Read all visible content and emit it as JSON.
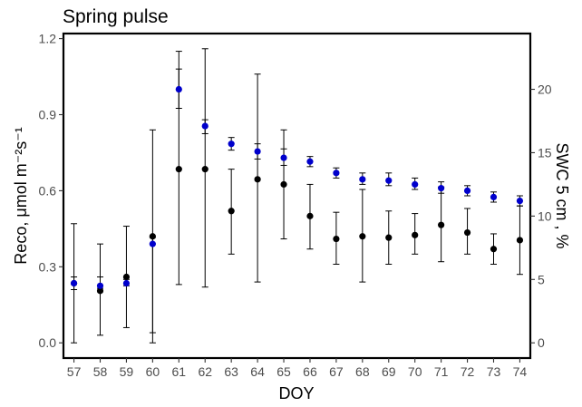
{
  "chart_data": {
    "type": "scatter",
    "title": "Spring pulse",
    "xlabel": "DOY",
    "ylabel_left": "Reco, μmol m⁻²s⁻¹",
    "ylabel_right": "SWC 5 cm , %",
    "x": [
      57,
      58,
      59,
      60,
      61,
      62,
      63,
      64,
      65,
      66,
      67,
      68,
      69,
      70,
      71,
      72,
      73,
      74
    ],
    "xlim": [
      56.6,
      74.4
    ],
    "ylim_left": [
      -0.06,
      1.22
    ],
    "ylim_right": [
      -1.2,
      24.4
    ],
    "yticks_left": [
      "0.0",
      "0.3",
      "0.6",
      "0.9",
      "1.2"
    ],
    "yticks_right": [
      "0",
      "5",
      "10",
      "15",
      "20"
    ],
    "grid": false,
    "legend": "none",
    "colors": {
      "reco": "#000000",
      "swc": "#0000cc"
    },
    "series": [
      {
        "axis": "left",
        "values": [
          0.235,
          0.205,
          0.26,
          0.42,
          0.685,
          0.685,
          0.52,
          0.645,
          0.625,
          0.5,
          0.41,
          0.42,
          0.415,
          0.425,
          0.465,
          0.435,
          0.37,
          0.405
        ],
        "err_low": [
          0.0,
          0.03,
          0.06,
          0.04,
          0.23,
          0.22,
          0.35,
          0.24,
          0.41,
          0.37,
          0.31,
          0.24,
          0.31,
          0.35,
          0.32,
          0.35,
          0.31,
          0.27
        ],
        "err_high": [
          0.47,
          0.39,
          0.46,
          0.84,
          1.15,
          1.16,
          0.685,
          1.06,
          0.84,
          0.625,
          0.515,
          0.605,
          0.52,
          0.51,
          0.615,
          0.53,
          0.43,
          0.54
        ]
      },
      {
        "axis": "right",
        "values": [
          4.7,
          4.5,
          4.7,
          7.8,
          20.0,
          17.1,
          15.7,
          15.1,
          14.6,
          14.3,
          13.4,
          12.9,
          12.8,
          12.5,
          12.2,
          12.0,
          11.5,
          11.2
        ],
        "err_low": [
          4.2,
          4.3,
          4.5,
          0.0,
          18.5,
          16.5,
          15.2,
          14.5,
          14.0,
          13.9,
          13.0,
          12.5,
          12.4,
          12.1,
          11.8,
          11.6,
          11.1,
          10.8
        ],
        "err_high": [
          5.2,
          5.2,
          5.0,
          8.3,
          21.6,
          17.6,
          16.2,
          15.7,
          15.3,
          14.7,
          13.8,
          13.4,
          13.4,
          13.0,
          12.7,
          12.4,
          11.9,
          11.6
        ]
      }
    ]
  }
}
